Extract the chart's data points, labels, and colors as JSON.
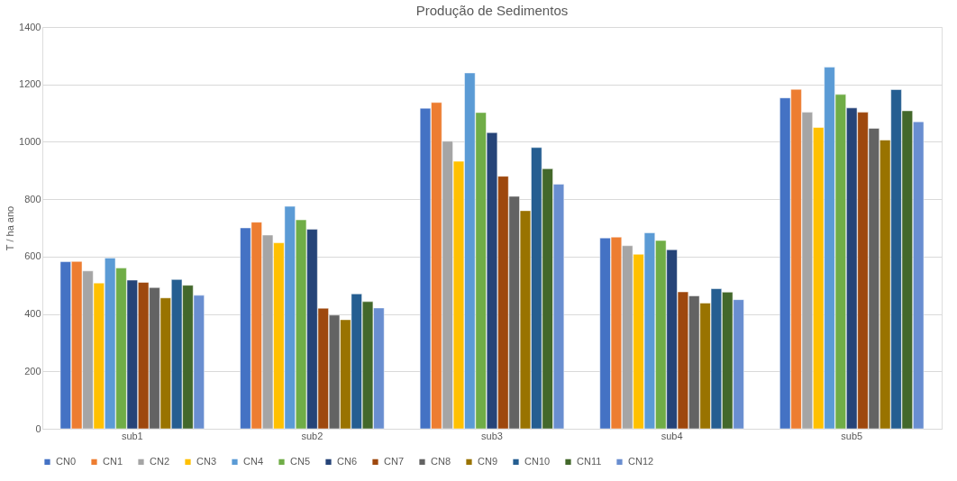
{
  "chart_data": {
    "type": "bar",
    "title": "Produção de Sedimentos",
    "ylabel": "T / ha ano",
    "categories": [
      "sub1",
      "sub2",
      "sub3",
      "sub4",
      "sub5"
    ],
    "ylim": [
      0,
      1400
    ],
    "yticks": [
      0,
      200,
      400,
      600,
      800,
      1000,
      1200,
      1400
    ],
    "grid": "y",
    "legend": "bottom",
    "series": [
      {
        "name": "CN0",
        "color": "#4472c4",
        "values": [
          582,
          700,
          1117,
          665,
          1153
        ]
      },
      {
        "name": "CN1",
        "color": "#ed7d31",
        "values": [
          583,
          720,
          1137,
          668,
          1183
        ]
      },
      {
        "name": "CN2",
        "color": "#a5a5a5",
        "values": [
          550,
          675,
          1002,
          638,
          1103
        ]
      },
      {
        "name": "CN3",
        "color": "#ffc000",
        "values": [
          508,
          648,
          932,
          608,
          1050
        ]
      },
      {
        "name": "CN4",
        "color": "#5b9bd5",
        "values": [
          595,
          775,
          1240,
          683,
          1260
        ]
      },
      {
        "name": "CN5",
        "color": "#70ad47",
        "values": [
          560,
          728,
          1102,
          656,
          1165
        ]
      },
      {
        "name": "CN6",
        "color": "#264478",
        "values": [
          518,
          695,
          1032,
          624,
          1118
        ]
      },
      {
        "name": "CN7",
        "color": "#9e480e",
        "values": [
          510,
          420,
          880,
          477,
          1103
        ]
      },
      {
        "name": "CN8",
        "color": "#636363",
        "values": [
          492,
          396,
          810,
          463,
          1047
        ]
      },
      {
        "name": "CN9",
        "color": "#997300",
        "values": [
          456,
          380,
          760,
          438,
          1006
        ]
      },
      {
        "name": "CN10",
        "color": "#255e91",
        "values": [
          520,
          470,
          980,
          488,
          1182
        ]
      },
      {
        "name": "CN11",
        "color": "#43682b",
        "values": [
          500,
          443,
          906,
          476,
          1108
        ]
      },
      {
        "name": "CN12",
        "color": "#698ed0",
        "values": [
          465,
          421,
          852,
          450,
          1070
        ]
      }
    ]
  }
}
